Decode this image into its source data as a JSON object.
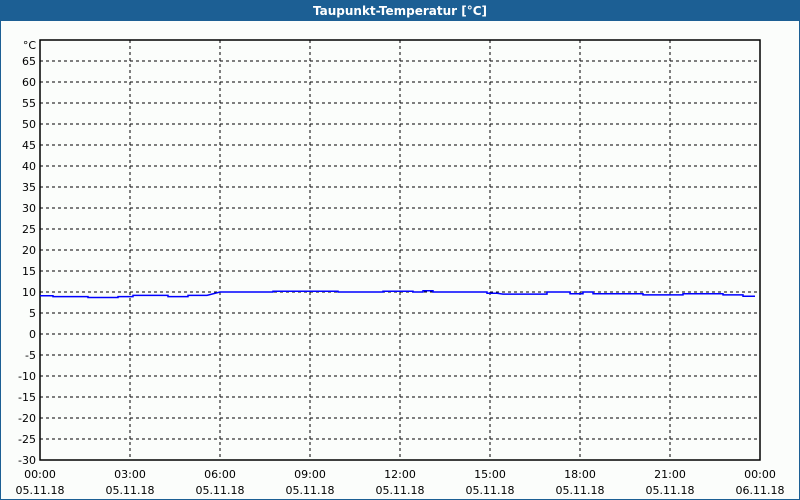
{
  "window": {
    "title": "Taupunkt-Temperatur [°C]"
  },
  "colors": {
    "titlebar": "#1c5f94",
    "series": "#0000ff",
    "background": "#fbfdfb"
  },
  "chart_data": {
    "type": "line",
    "title": "Taupunkt-Temperatur [°C]",
    "ylabel": "°C",
    "ylim": [
      -30,
      70
    ],
    "yticks": [
      65,
      60,
      55,
      50,
      45,
      40,
      35,
      30,
      25,
      20,
      15,
      10,
      5,
      0,
      -5,
      -10,
      -15,
      -20,
      -25,
      -30
    ],
    "xlim": [
      "05.11.18 00:00",
      "06.11.18 00:00"
    ],
    "xticks": [
      {
        "time": "00:00",
        "date": "05.11.18"
      },
      {
        "time": "03:00",
        "date": "05.11.18"
      },
      {
        "time": "06:00",
        "date": "05.11.18"
      },
      {
        "time": "09:00",
        "date": "05.11.18"
      },
      {
        "time": "12:00",
        "date": "05.11.18"
      },
      {
        "time": "15:00",
        "date": "05.11.18"
      },
      {
        "time": "18:00",
        "date": "05.11.18"
      },
      {
        "time": "21:00",
        "date": "05.11.18"
      },
      {
        "time": "00:00",
        "date": "06.11.18"
      }
    ],
    "grid": true,
    "series": [
      {
        "x": [
          "00:00",
          "00:26",
          "00:26",
          "01:36",
          "01:36",
          "02:36",
          "02:36",
          "03:06",
          "03:06",
          "04:16",
          "04:16",
          "04:56",
          "04:56",
          "05:34",
          "06:00",
          "07:46",
          "07:46",
          "09:56",
          "09:56",
          "11:26",
          "11:26",
          "12:26",
          "12:26",
          "12:46",
          "12:46",
          "13:06",
          "13:06",
          "14:54",
          "14:54",
          "15:14",
          "15:26",
          "16:54",
          "16:54",
          "17:40",
          "17:40",
          "18:06",
          "18:06",
          "18:26",
          "18:26",
          "20:06",
          "20:06",
          "21:26",
          "21:26",
          "22:46",
          "22:46",
          "23:26",
          "23:26",
          "23:50"
        ],
        "y": [
          9.1,
          9.1,
          8.9,
          8.9,
          8.7,
          8.7,
          8.9,
          8.9,
          9.2,
          9.2,
          8.9,
          8.9,
          9.2,
          9.2,
          10.0,
          10.0,
          10.2,
          10.2,
          10.0,
          10.0,
          10.2,
          10.2,
          10.0,
          10.0,
          10.3,
          10.3,
          10.0,
          10.0,
          9.7,
          9.7,
          9.5,
          9.5,
          10.0,
          10.0,
          9.6,
          9.6,
          10.0,
          10.0,
          9.6,
          9.6,
          9.3,
          9.3,
          9.6,
          9.6,
          9.3,
          9.3,
          9.0,
          9.0
        ]
      }
    ]
  }
}
